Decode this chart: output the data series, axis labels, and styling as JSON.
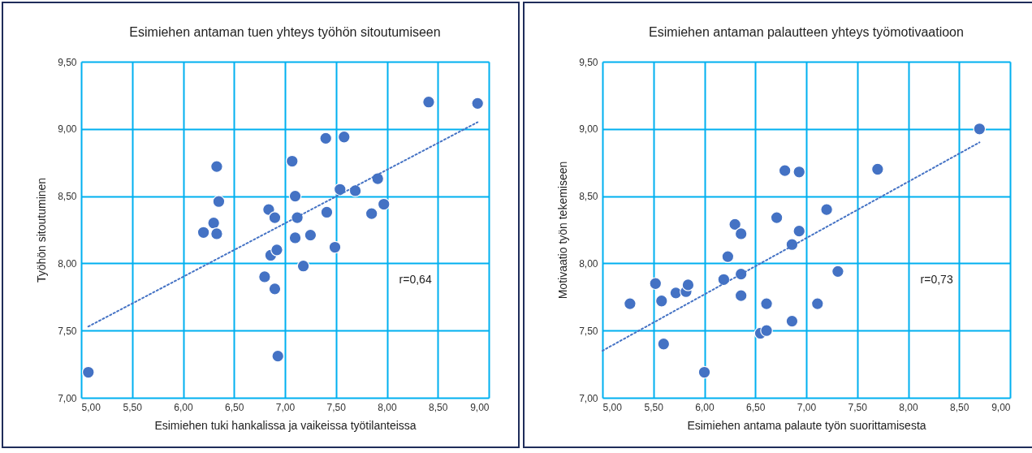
{
  "chart_data": [
    {
      "type": "scatter",
      "title": "Esimiehen antaman tuen yhteys työhön sitoutumiseen",
      "xlabel": "Esimiehen tuki hankalissa ja vaikeissa työtilanteissa",
      "ylabel": "Työhön sitoutuminen",
      "xlim": [
        5,
        9
      ],
      "xticks": [
        {
          "value": 5,
          "label": "5,00"
        },
        {
          "value": 5.5,
          "label": "5,50"
        },
        {
          "value": 6,
          "label": "6,00"
        },
        {
          "value": 6.5,
          "label": "6,50"
        },
        {
          "value": 7,
          "label": "7,00"
        },
        {
          "value": 7.5,
          "label": "7,50"
        },
        {
          "value": 8,
          "label": "8,00"
        },
        {
          "value": 8.5,
          "label": "8,50"
        },
        {
          "value": 9,
          "label": "9,00"
        }
      ],
      "ylim": [
        7,
        9.5
      ],
      "yticks": [
        {
          "value": 7,
          "label": "7,00"
        },
        {
          "value": 7.5,
          "label": "7,50"
        },
        {
          "value": 8,
          "label": "8,00"
        },
        {
          "value": 8.5,
          "label": "8,50"
        },
        {
          "value": 9,
          "label": "9,00"
        },
        {
          "value": 9.5,
          "label": "9,50"
        }
      ],
      "grid": true,
      "annotations": [
        "r=0,64"
      ],
      "series": [
        {
          "type": "scatter",
          "color": "#4472c4",
          "marker": "circle",
          "x": [
            5.07,
            6.2,
            6.3,
            6.33,
            6.33,
            6.35,
            6.8,
            6.84,
            6.86,
            6.9,
            6.9,
            6.92,
            6.93,
            7.07,
            7.1,
            7.1,
            7.12,
            7.18,
            7.25,
            7.4,
            7.41,
            7.49,
            7.54,
            7.58,
            7.69,
            7.85,
            7.91,
            7.97,
            8.41,
            8.89
          ],
          "values": [
            7.19,
            8.23,
            8.3,
            8.72,
            8.22,
            8.46,
            7.9,
            8.4,
            8.06,
            8.34,
            7.81,
            8.1,
            7.31,
            8.76,
            8.5,
            8.19,
            8.34,
            7.98,
            8.21,
            8.93,
            8.38,
            8.12,
            8.55,
            8.94,
            8.54,
            8.37,
            8.63,
            8.44,
            9.2,
            9.19
          ]
        },
        {
          "type": "line",
          "color": "#4472c4",
          "line_style": "dotted",
          "marker": "none",
          "x": [
            5.07,
            8.89
          ],
          "values": [
            7.53,
            9.05
          ]
        }
      ]
    },
    {
      "type": "scatter",
      "title": "Esimiehen antaman palautteen yhteys työmotivaatioon",
      "xlabel": "Esimiehen antama palaute työn suorittamisesta",
      "ylabel": "Motivaatio työn tekemiseen",
      "xlim": [
        5,
        9
      ],
      "xticks": [
        {
          "value": 5,
          "label": "5,00"
        },
        {
          "value": 5.5,
          "label": "5,50"
        },
        {
          "value": 6,
          "label": "6,00"
        },
        {
          "value": 6.5,
          "label": "6,50"
        },
        {
          "value": 7,
          "label": "7,00"
        },
        {
          "value": 7.5,
          "label": "7,50"
        },
        {
          "value": 8,
          "label": "8,00"
        },
        {
          "value": 8.5,
          "label": "8,50"
        },
        {
          "value": 9,
          "label": "9,00"
        }
      ],
      "ylim": [
        7,
        9.5
      ],
      "yticks": [
        {
          "value": 7,
          "label": "7,00"
        },
        {
          "value": 7.5,
          "label": "7,50"
        },
        {
          "value": 8,
          "label": "8,00"
        },
        {
          "value": 8.5,
          "label": "8,50"
        },
        {
          "value": 9,
          "label": "9,00"
        },
        {
          "value": 9.5,
          "label": "9,50"
        }
      ],
      "grid": true,
      "annotations": [
        "r=0,73"
      ],
      "series": [
        {
          "type": "scatter",
          "color": "#4472c4",
          "marker": "circle",
          "x": [
            5.27,
            5.52,
            5.58,
            5.6,
            5.72,
            5.82,
            5.84,
            6.0,
            6.19,
            6.23,
            6.3,
            6.36,
            6.36,
            6.36,
            6.55,
            6.61,
            6.61,
            6.71,
            6.79,
            6.86,
            6.86,
            6.93,
            6.93,
            7.11,
            7.2,
            7.31,
            7.7,
            8.7
          ],
          "values": [
            7.7,
            7.85,
            7.72,
            7.4,
            7.78,
            7.79,
            7.84,
            7.19,
            7.88,
            8.05,
            8.29,
            8.22,
            7.92,
            7.76,
            7.48,
            7.5,
            7.7,
            8.34,
            8.69,
            8.14,
            7.57,
            8.24,
            8.68,
            7.7,
            8.4,
            7.94,
            8.7,
            9.0
          ]
        },
        {
          "type": "line",
          "color": "#4472c4",
          "line_style": "dotted",
          "marker": "none",
          "x": [
            5.0,
            8.7
          ],
          "values": [
            7.35,
            8.9
          ]
        }
      ]
    }
  ]
}
